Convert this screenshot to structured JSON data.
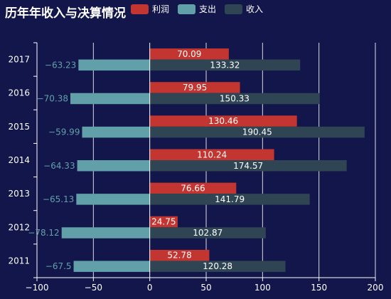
{
  "title": "历年年收入与决算情况",
  "chart_data": {
    "type": "bar",
    "orientation": "horizontal",
    "categories": [
      "2011",
      "2012",
      "2013",
      "2014",
      "2015",
      "2016",
      "2017"
    ],
    "series": [
      {
        "name": "利润",
        "color": "#c23531",
        "values": [
          52.78,
          24.75,
          76.66,
          110.24,
          130.46,
          79.95,
          70.09
        ]
      },
      {
        "name": "支出",
        "color": "#61a0a8",
        "values": [
          -67.5,
          -78.12,
          -65.13,
          -64.33,
          -59.99,
          -70.38,
          -63.23
        ]
      },
      {
        "name": "收入",
        "color": "#2f4554",
        "values": [
          120.28,
          102.87,
          141.79,
          174.57,
          190.45,
          150.33,
          133.32
        ]
      }
    ],
    "xlim": [
      -100,
      200
    ],
    "xticks": [
      "−100",
      "−50",
      "0",
      "50",
      "100",
      "150",
      "200"
    ],
    "grid": true,
    "legend": "top"
  }
}
